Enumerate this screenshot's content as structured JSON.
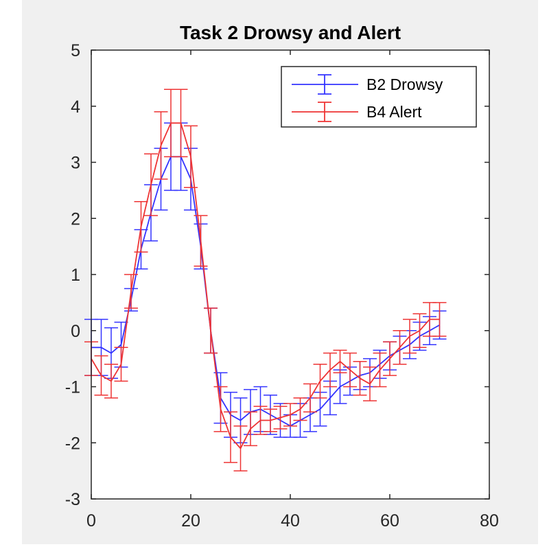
{
  "chart_data": {
    "type": "line",
    "title": "Task 2 Drowsy and Alert",
    "xlabel": "",
    "ylabel": "",
    "xlim": [
      0,
      80
    ],
    "ylim": [
      -3,
      5
    ],
    "xticks": [
      "0",
      "20",
      "40",
      "60",
      "80"
    ],
    "yticks": [
      "5",
      "4",
      "3",
      "2",
      "1",
      "0",
      "-1",
      "-2",
      "-3"
    ],
    "xtick_values": [
      0,
      20,
      40,
      60,
      80
    ],
    "ytick_values": [
      5,
      4,
      3,
      2,
      1,
      0,
      -1,
      -2,
      -3
    ],
    "grid": false,
    "legend_position": "top-right",
    "series": [
      {
        "name": "B2 Drowsy",
        "color": "#3333ff",
        "x": [
          0,
          2,
          4,
          6,
          8,
          10,
          12,
          14,
          16,
          18,
          20,
          22,
          24,
          26,
          28,
          30,
          32,
          34,
          36,
          38,
          40,
          42,
          44,
          46,
          48,
          50,
          52,
          54,
          56,
          58,
          60,
          62,
          64,
          66,
          68,
          70
        ],
        "y": [
          -0.3,
          -0.3,
          -0.4,
          -0.25,
          0.55,
          1.45,
          2.1,
          2.7,
          3.1,
          3.1,
          2.7,
          1.5,
          0.0,
          -1.2,
          -1.5,
          -1.6,
          -1.45,
          -1.4,
          -1.5,
          -1.6,
          -1.7,
          -1.6,
          -1.5,
          -1.4,
          -1.2,
          -1.0,
          -0.9,
          -0.8,
          -0.75,
          -0.6,
          -0.45,
          -0.35,
          -0.25,
          -0.1,
          0.0,
          0.1
        ],
        "err": [
          0.5,
          0.5,
          0.45,
          0.4,
          0.2,
          0.35,
          0.5,
          0.55,
          0.6,
          0.6,
          0.55,
          0.4,
          0.4,
          0.45,
          0.4,
          0.4,
          0.4,
          0.4,
          0.35,
          0.3,
          0.2,
          0.3,
          0.3,
          0.3,
          0.3,
          0.3,
          0.25,
          0.25,
          0.25,
          0.25,
          0.25,
          0.25,
          0.25,
          0.25,
          0.25,
          0.25
        ]
      },
      {
        "name": "B4 Alert",
        "color": "#ee3333",
        "x": [
          0,
          2,
          4,
          6,
          8,
          10,
          12,
          14,
          16,
          18,
          20,
          22,
          24,
          26,
          28,
          30,
          32,
          34,
          36,
          38,
          40,
          42,
          44,
          46,
          48,
          50,
          52,
          54,
          56,
          58,
          60,
          62,
          64,
          66,
          68,
          70
        ],
        "y": [
          -0.5,
          -0.8,
          -0.9,
          -0.6,
          0.7,
          1.85,
          2.6,
          3.3,
          3.7,
          3.7,
          3.1,
          1.6,
          0.0,
          -1.4,
          -1.9,
          -2.1,
          -1.75,
          -1.6,
          -1.6,
          -1.55,
          -1.5,
          -1.4,
          -1.2,
          -0.9,
          -0.7,
          -0.55,
          -0.7,
          -0.85,
          -0.95,
          -0.7,
          -0.5,
          -0.3,
          -0.1,
          0.0,
          0.2,
          0.2
        ],
        "err": [
          0.3,
          0.35,
          0.3,
          0.3,
          0.3,
          0.45,
          0.55,
          0.6,
          0.6,
          0.6,
          0.55,
          0.45,
          0.4,
          0.4,
          0.45,
          0.4,
          0.3,
          0.25,
          0.2,
          0.2,
          0.2,
          0.2,
          0.25,
          0.3,
          0.3,
          0.2,
          0.3,
          0.3,
          0.3,
          0.3,
          0.3,
          0.3,
          0.3,
          0.3,
          0.3,
          0.3
        ]
      }
    ]
  }
}
